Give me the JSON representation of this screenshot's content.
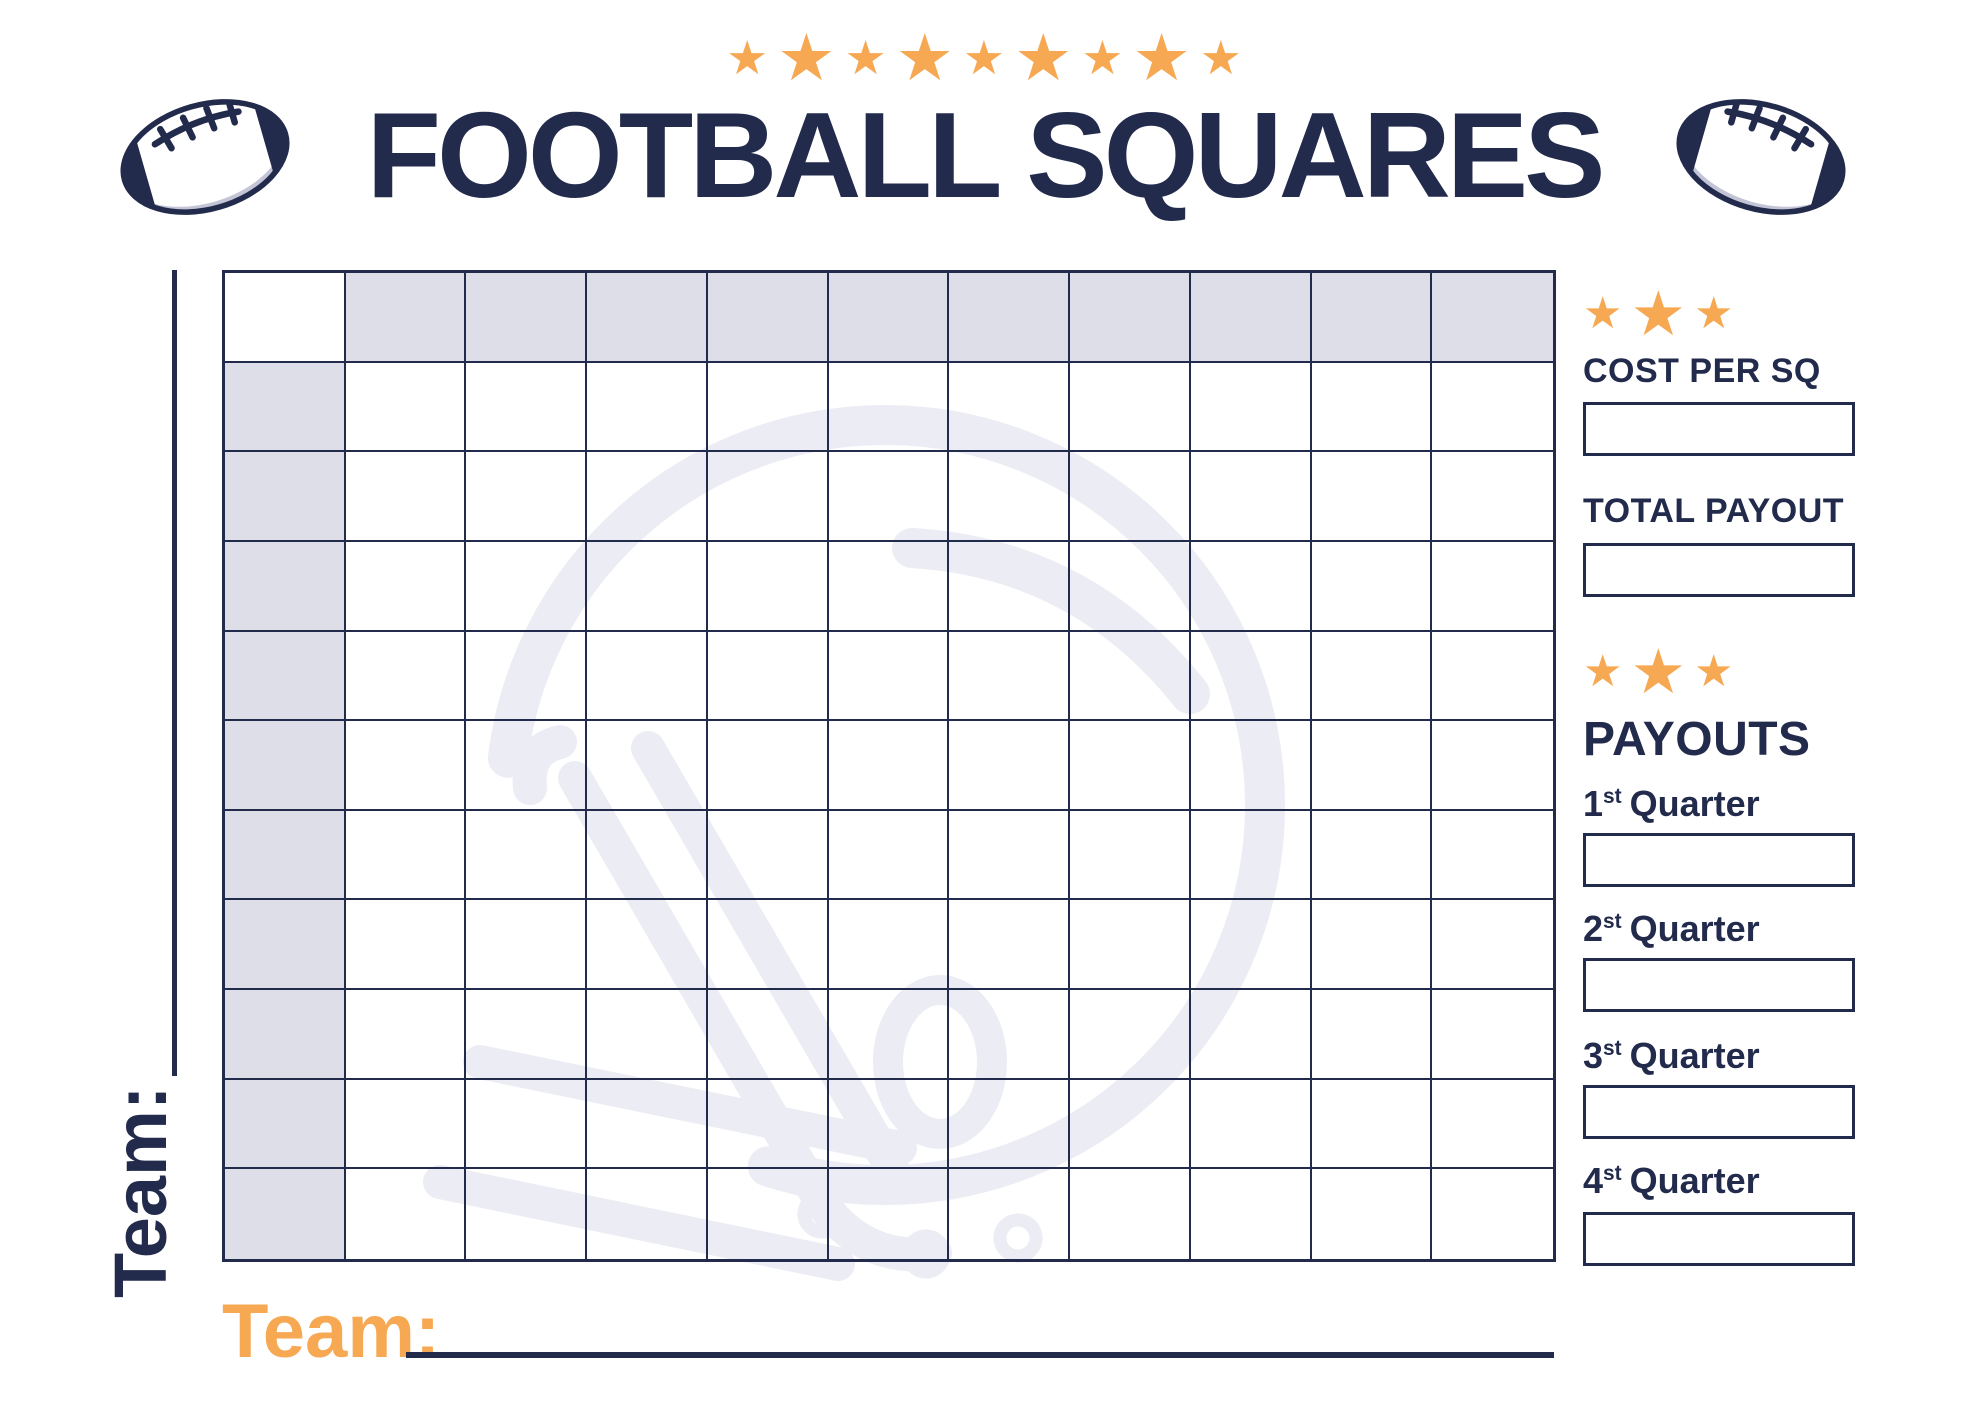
{
  "page": {
    "title": "FOOTBALL SQUARES"
  },
  "icons": {
    "star": "★"
  },
  "decor": {
    "top_star_pattern": [
      "sm",
      "lg",
      "sm",
      "lg",
      "sm",
      "lg",
      "sm",
      "lg",
      "sm"
    ],
    "side_star_pattern": [
      "sm",
      "lg",
      "sm"
    ]
  },
  "grid": {
    "rows": 11,
    "cols": 11
  },
  "team_left": {
    "label": "Team:",
    "value": ""
  },
  "team_bottom": {
    "label": "Team:",
    "value": ""
  },
  "sidebar": {
    "cost_per_sq": {
      "label": "COST PER SQ",
      "value": ""
    },
    "total_payout": {
      "label": "TOTAL PAYOUT",
      "value": ""
    },
    "payouts": {
      "heading": "PAYOUTS",
      "quarters": [
        {
          "num": "1",
          "suffix": "st",
          "word": "Quarter",
          "value": ""
        },
        {
          "num": "2",
          "suffix": "st",
          "word": "Quarter",
          "value": ""
        },
        {
          "num": "3",
          "suffix": "st",
          "word": "Quarter",
          "value": ""
        },
        {
          "num": "4",
          "suffix": "st",
          "word": "Quarter",
          "value": ""
        }
      ]
    }
  },
  "colors": {
    "navy": "#232B4D",
    "orange": "#F6A853",
    "cell_shade": "#DEDEE9",
    "watermark": "#ECECF4"
  }
}
